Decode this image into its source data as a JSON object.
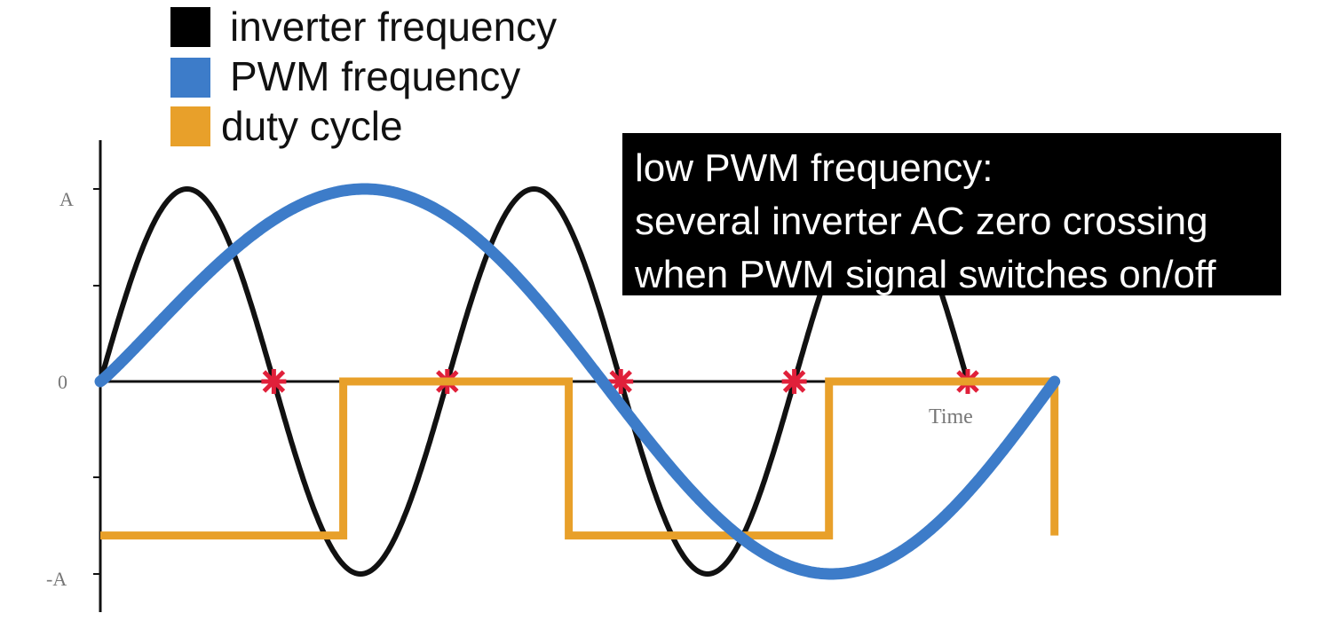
{
  "legend": {
    "items": [
      {
        "label": "inverter frequency",
        "color": "#000000"
      },
      {
        "label": "PWM frequency",
        "color": "#3D7CC9"
      },
      {
        "label": "duty cycle",
        "color": "#E8A02A"
      }
    ]
  },
  "callout": {
    "lines": [
      "low PWM frequency:",
      "several inverter AC zero crossing",
      "when PWM signal switches on/off"
    ]
  },
  "chart_data": {
    "type": "line",
    "ytick_labels": [
      "A",
      "0",
      "-A"
    ],
    "xlabel": "Time",
    "xlim": [
      0,
      5.5
    ],
    "ylim": [
      -1,
      1
    ],
    "series": [
      {
        "name": "inverter frequency",
        "kind": "sine",
        "amplitude": 1,
        "periods_per_unit": 0.5,
        "x_end": 5
      },
      {
        "name": "PWM frequency",
        "kind": "sine",
        "amplitude": 1,
        "x_end": 5.5
      },
      {
        "name": "duty cycle",
        "kind": "square",
        "points": [
          [
            0,
            -0.8
          ],
          [
            1.4,
            -0.8
          ],
          [
            1.4,
            0
          ],
          [
            2.7,
            0
          ],
          [
            2.7,
            -0.8
          ],
          [
            4.2,
            -0.8
          ],
          [
            4.2,
            0
          ],
          [
            5.5,
            0
          ],
          [
            5.5,
            -0.8
          ]
        ]
      }
    ],
    "zero_crossings": [
      1,
      2,
      3,
      4,
      5
    ],
    "marker_color": "#E0203A"
  }
}
